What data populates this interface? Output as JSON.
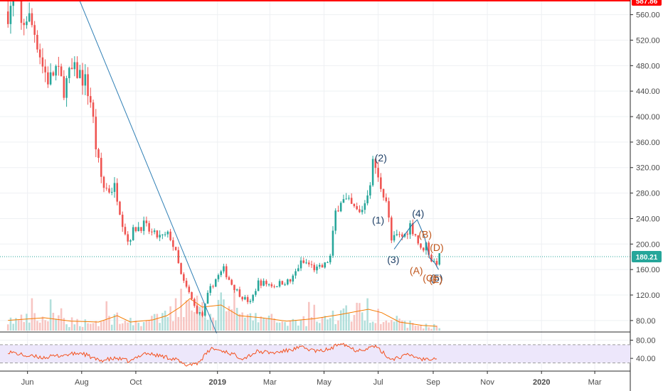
{
  "chart_data": [
    {
      "type": "candlestick",
      "panel": "price",
      "price_axis": {
        "ticks": [
          {
            "value": 80,
            "label": "80.00"
          },
          {
            "value": 120,
            "label": "120.00"
          },
          {
            "value": 160,
            "label": "160.00"
          },
          {
            "value": 200,
            "label": "200.00"
          },
          {
            "value": 240,
            "label": "240.00"
          },
          {
            "value": 280,
            "label": "280.00"
          },
          {
            "value": 320,
            "label": "320.00"
          },
          {
            "value": 360,
            "label": "360.00"
          },
          {
            "value": 400,
            "label": "400.00"
          },
          {
            "value": 440,
            "label": "440.00"
          },
          {
            "value": 480,
            "label": "480.00"
          },
          {
            "value": 520,
            "label": "520.00"
          },
          {
            "value": 560,
            "label": "560.00"
          }
        ],
        "ylim": [
          62,
          583
        ]
      },
      "time_axis": {
        "ticks": [
          {
            "date": "2018-06-01",
            "label": "Jun",
            "bold": false
          },
          {
            "date": "2018-08-01",
            "label": "Aug",
            "bold": false
          },
          {
            "date": "2018-10-01",
            "label": "Oct",
            "bold": false
          },
          {
            "date": "2019-01-01",
            "label": "2019",
            "bold": true
          },
          {
            "date": "2019-03-01",
            "label": "Mar",
            "bold": false
          },
          {
            "date": "2019-05-01",
            "label": "May",
            "bold": false
          },
          {
            "date": "2019-07-01",
            "label": "Jul",
            "bold": false
          },
          {
            "date": "2019-09-01",
            "label": "Sep",
            "bold": false
          },
          {
            "date": "2019-11-01",
            "label": "Nov",
            "bold": false
          },
          {
            "date": "2020-01-01",
            "label": "2020",
            "bold": true
          },
          {
            "date": "2020-03-01",
            "label": "Mar",
            "bold": false
          }
        ],
        "xlim": [
          "2018-05-01",
          "2020-04-10"
        ]
      },
      "price_path": [
        [
          "2018-05-10",
          565
        ],
        [
          "2018-05-20",
          590
        ],
        [
          "2018-05-25",
          540
        ],
        [
          "2018-06-01",
          560
        ],
        [
          "2018-06-10",
          530
        ],
        [
          "2018-06-18",
          480
        ],
        [
          "2018-06-25",
          455
        ],
        [
          "2018-07-03",
          475
        ],
        [
          "2018-07-12",
          445
        ],
        [
          "2018-07-20",
          470
        ],
        [
          "2018-07-28",
          470
        ],
        [
          "2018-08-05",
          455
        ],
        [
          "2018-08-12",
          420
        ],
        [
          "2018-08-18",
          340
        ],
        [
          "2018-08-25",
          290
        ],
        [
          "2018-09-01",
          285
        ],
        [
          "2018-09-08",
          290
        ],
        [
          "2018-09-15",
          240
        ],
        [
          "2018-09-22",
          205
        ],
        [
          "2018-09-30",
          225
        ],
        [
          "2018-10-10",
          230
        ],
        [
          "2018-10-20",
          215
        ],
        [
          "2018-10-30",
          210
        ],
        [
          "2018-11-08",
          215
        ],
        [
          "2018-11-15",
          185
        ],
        [
          "2018-11-22",
          145
        ],
        [
          "2018-12-01",
          120
        ],
        [
          "2018-12-08",
          95
        ],
        [
          "2018-12-15",
          88
        ],
        [
          "2018-12-22",
          125
        ],
        [
          "2018-12-30",
          145
        ],
        [
          "2019-01-08",
          160
        ],
        [
          "2019-01-18",
          135
        ],
        [
          "2019-01-28",
          118
        ],
        [
          "2019-02-07",
          108
        ],
        [
          "2019-02-16",
          140
        ],
        [
          "2019-02-25",
          138
        ],
        [
          "2019-03-06",
          135
        ],
        [
          "2019-03-15",
          140
        ],
        [
          "2019-03-25",
          142
        ],
        [
          "2019-04-04",
          170
        ],
        [
          "2019-04-12",
          170
        ],
        [
          "2019-04-22",
          160
        ],
        [
          "2019-05-01",
          165
        ],
        [
          "2019-05-08",
          180
        ],
        [
          "2019-05-14",
          250
        ],
        [
          "2019-05-20",
          270
        ],
        [
          "2019-05-28",
          265
        ],
        [
          "2019-06-04",
          255
        ],
        [
          "2019-06-10",
          248
        ],
        [
          "2019-06-16",
          265
        ],
        [
          "2019-06-22",
          300
        ],
        [
          "2019-06-26",
          335
        ],
        [
          "2019-07-01",
          300
        ],
        [
          "2019-07-06",
          285
        ],
        [
          "2019-07-10",
          270
        ],
        [
          "2019-07-16",
          205
        ],
        [
          "2019-07-22",
          212
        ],
        [
          "2019-07-30",
          212
        ],
        [
          "2019-08-06",
          230
        ],
        [
          "2019-08-12",
          215
        ],
        [
          "2019-08-18",
          190
        ],
        [
          "2019-08-24",
          200
        ],
        [
          "2019-08-30",
          175
        ],
        [
          "2019-09-04",
          170
        ],
        [
          "2019-09-08",
          180
        ]
      ],
      "volume_ma_path": [
        [
          "2018-05-10",
          0.24
        ],
        [
          "2018-06-20",
          0.3
        ],
        [
          "2018-07-20",
          0.22
        ],
        [
          "2018-08-20",
          0.2
        ],
        [
          "2018-09-10",
          0.35
        ],
        [
          "2018-09-25",
          0.2
        ],
        [
          "2018-10-20",
          0.25
        ],
        [
          "2018-11-05",
          0.35
        ],
        [
          "2018-11-20",
          0.55
        ],
        [
          "2018-12-01",
          0.75
        ],
        [
          "2018-12-15",
          0.55
        ],
        [
          "2019-01-05",
          0.6
        ],
        [
          "2019-01-25",
          0.35
        ],
        [
          "2019-02-20",
          0.3
        ],
        [
          "2019-03-20",
          0.22
        ],
        [
          "2019-04-20",
          0.28
        ],
        [
          "2019-05-20",
          0.38
        ],
        [
          "2019-06-20",
          0.5
        ],
        [
          "2019-07-05",
          0.42
        ],
        [
          "2019-07-25",
          0.2
        ],
        [
          "2019-08-20",
          0.12
        ],
        [
          "2019-09-05",
          0.1
        ]
      ],
      "rsi_path": [
        [
          "2018-05-10",
          55
        ],
        [
          "2018-06-01",
          45
        ],
        [
          "2018-06-20",
          42
        ],
        [
          "2018-07-15",
          48
        ],
        [
          "2018-08-01",
          52
        ],
        [
          "2018-08-20",
          35
        ],
        [
          "2018-09-10",
          40
        ],
        [
          "2018-09-25",
          33
        ],
        [
          "2018-10-10",
          52
        ],
        [
          "2018-10-30",
          45
        ],
        [
          "2018-11-15",
          38
        ],
        [
          "2018-11-25",
          25
        ],
        [
          "2018-12-10",
          30
        ],
        [
          "2018-12-25",
          62
        ],
        [
          "2019-01-10",
          55
        ],
        [
          "2019-01-30",
          40
        ],
        [
          "2019-02-15",
          55
        ],
        [
          "2019-03-05",
          52
        ],
        [
          "2019-03-20",
          57
        ],
        [
          "2019-04-05",
          64
        ],
        [
          "2019-04-25",
          55
        ],
        [
          "2019-05-10",
          62
        ],
        [
          "2019-05-20",
          76
        ],
        [
          "2019-06-05",
          58
        ],
        [
          "2019-06-20",
          62
        ],
        [
          "2019-06-26",
          68
        ],
        [
          "2019-07-05",
          55
        ],
        [
          "2019-07-15",
          38
        ],
        [
          "2019-08-05",
          48
        ],
        [
          "2019-08-20",
          38
        ],
        [
          "2019-09-05",
          42
        ]
      ],
      "rsi_axis": {
        "ticks": [
          {
            "value": 40,
            "label": "40.00"
          },
          {
            "value": 80,
            "label": "80.00"
          }
        ],
        "ylim": [
          12,
          98
        ],
        "band": [
          30,
          70
        ]
      },
      "trendline": {
        "from": [
          "2018-07-25",
          598
        ],
        "to": [
          "2018-12-31",
          60
        ]
      },
      "price_line": {
        "value": 180.21,
        "label": "180.21"
      },
      "top_line": {
        "value": 588,
        "label": "587.86"
      },
      "wave_labels": [
        {
          "text": "(2)",
          "date": "2019-07-04",
          "price": 330,
          "group": "impulse"
        },
        {
          "text": "(1)",
          "date": "2019-07-01",
          "price": 232,
          "group": "impulse"
        },
        {
          "text": "(4)",
          "date": "2019-08-15",
          "price": 243,
          "group": "impulse"
        },
        {
          "text": "(3)",
          "date": "2019-07-18",
          "price": 170,
          "group": "impulse"
        },
        {
          "text": "(5)",
          "date": "2019-09-05",
          "price": 141,
          "group": "impulse"
        },
        {
          "text": "(B)",
          "date": "2019-08-23",
          "price": 210,
          "group": "corrective"
        },
        {
          "text": "(D)",
          "date": "2019-09-05",
          "price": 189,
          "group": "corrective"
        },
        {
          "text": "(A)",
          "date": "2019-08-13",
          "price": 153,
          "group": "corrective"
        },
        {
          "text": "(C)",
          "date": "2019-08-28",
          "price": 141,
          "group": "corrective"
        },
        {
          "text": "(E)",
          "date": "2019-09-04",
          "price": 139,
          "group": "corrective"
        }
      ],
      "wave_polyline": [
        [
          "2019-07-19",
          192
        ],
        [
          "2019-07-30",
          213
        ],
        [
          "2019-08-08",
          230
        ],
        [
          "2019-08-14",
          238
        ],
        [
          "2019-08-22",
          212
        ],
        [
          "2019-08-28",
          178
        ],
        [
          "2019-09-03",
          170
        ],
        [
          "2019-09-07",
          160
        ]
      ],
      "colors": {
        "up": "#26a69a",
        "down": "#ef5350",
        "volume_up": "#b2dfdb",
        "volume_down": "#f7c5c2",
        "volume_ma": "#f57c00",
        "rsi_line": "#f4511e",
        "rsi_band": "#ede7fb",
        "trendline": "#2f7fb5",
        "price_line": "#26a69a",
        "top_line": "#ff0000",
        "impulse_label": "#1e3f66",
        "corrective_label": "#c0561b",
        "wave_line": "#1b6ea8"
      }
    }
  ]
}
